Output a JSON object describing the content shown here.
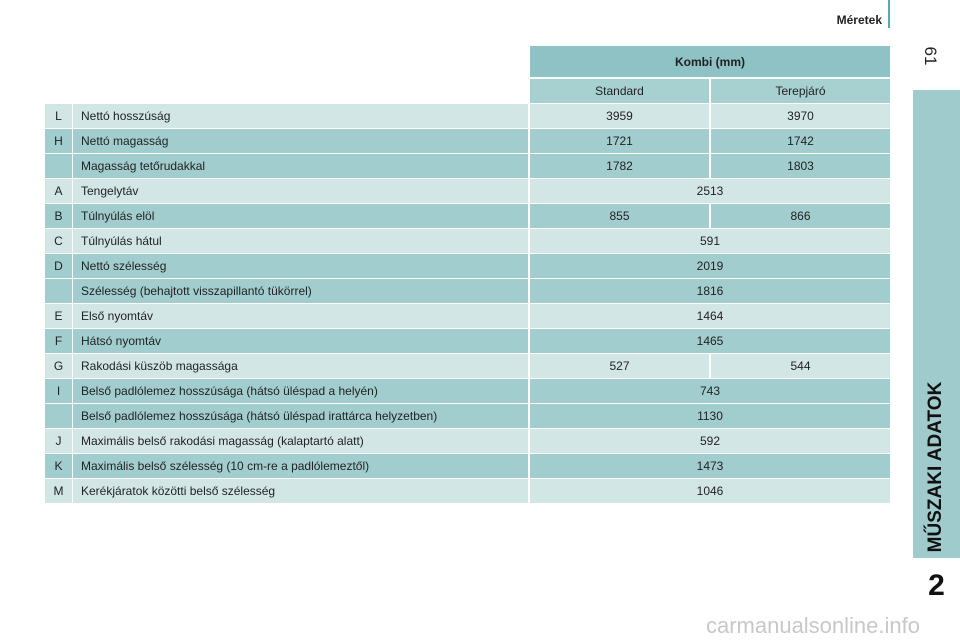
{
  "header": {
    "section": "Méretek",
    "page_number": "61"
  },
  "sidebar": {
    "title": "MŰSZAKI ADATOK",
    "chapter": "2"
  },
  "table": {
    "group_header": "Kombi (mm)",
    "columns": [
      "Standard",
      "Terepjáró"
    ],
    "rows": [
      {
        "letter": "L",
        "label": "Nettó hosszúság",
        "values": [
          "3959",
          "3970"
        ]
      },
      {
        "letter": "H",
        "label": "Nettó magasság",
        "values": [
          "1721",
          "1742"
        ]
      },
      {
        "letter": null,
        "label": "Magasság tetőrudakkal",
        "values": [
          "1782",
          "1803"
        ]
      },
      {
        "letter": "A",
        "label": "Tengelytáv",
        "values": [
          "2513"
        ]
      },
      {
        "letter": "B",
        "label": "Túlnyúlás elöl",
        "values": [
          "855",
          "866"
        ]
      },
      {
        "letter": "C",
        "label": "Túlnyúlás hátul",
        "values": [
          "591"
        ]
      },
      {
        "letter": "D",
        "label": "Nettó szélesség",
        "values": [
          "2019"
        ]
      },
      {
        "letter": null,
        "label": "Szélesség (behajtott visszapillantó tükörrel)",
        "values": [
          "1816"
        ]
      },
      {
        "letter": "E",
        "label": "Első nyomtáv",
        "values": [
          "1464"
        ]
      },
      {
        "letter": "F",
        "label": "Hátsó nyomtáv",
        "values": [
          "1465"
        ]
      },
      {
        "letter": "G",
        "label": "Rakodási küszöb magassága",
        "values": [
          "527",
          "544"
        ]
      },
      {
        "letter": "I",
        "label": "Belső padlólemez hosszúsága (hátsó üléspad a helyén)",
        "values": [
          "743"
        ]
      },
      {
        "letter": null,
        "label": "Belső padlólemez hosszúsága (hátsó üléspad irattárca helyzetben)",
        "values": [
          "1130"
        ]
      },
      {
        "letter": "J",
        "label": "Maximális belső rakodási magasság (kalaptartó alatt)",
        "values": [
          "592"
        ]
      },
      {
        "letter": "K",
        "label": "Maximális belső szélesség (10 cm-re a padlólemeztől)",
        "values": [
          "1473"
        ]
      },
      {
        "letter": "M",
        "label": "Kerékjáratok közötti belső szélesség",
        "values": [
          "1046"
        ]
      }
    ]
  },
  "watermark": "carmanualsonline.info"
}
